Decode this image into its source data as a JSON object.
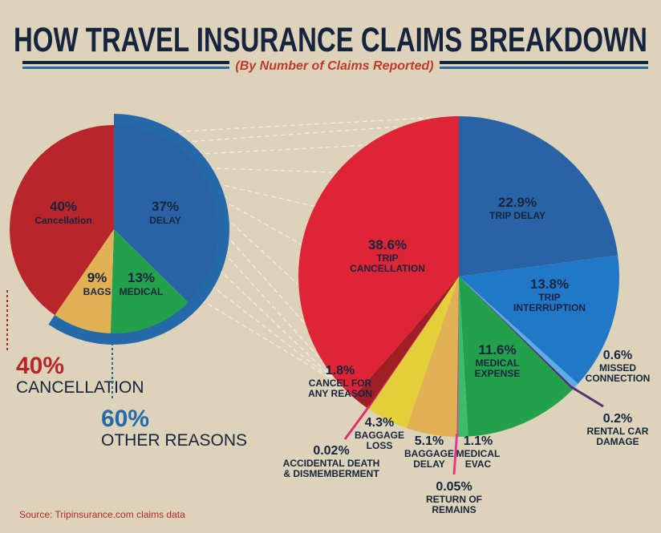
{
  "header": {
    "title": "HOW TRAVEL INSURANCE CLAIMS  BREAKDOWN",
    "subtitle": "(By Number of Claims Reported)"
  },
  "summary": {
    "cancel_pct": "40%",
    "cancel_label": "CANCELLATION",
    "other_pct": "60%",
    "other_label": "OTHER REASONS"
  },
  "source": "Source: Tripinsurance.com claims data",
  "chart_data": [
    {
      "type": "pie",
      "slices": [
        {
          "pct": "37%",
          "label": "DELAY",
          "value": 37,
          "color": "#2a63a5"
        },
        {
          "pct": "13%",
          "label": "MEDICAL",
          "value": 13,
          "color": "#22a04b"
        },
        {
          "pct": "9%",
          "label": "BAGS",
          "value": 9,
          "color": "#e2b155"
        },
        {
          "pct": "40%",
          "label": "Cancellation",
          "value": 40,
          "color": "#b8262c"
        }
      ],
      "highlight_color": "#2569ab"
    },
    {
      "type": "pie",
      "slices": [
        {
          "pct": "22.9%",
          "label": [
            "TRIP DELAY"
          ],
          "value": 22.9,
          "color": "#2a63a5"
        },
        {
          "pct": "13.8%",
          "label": [
            "TRIP",
            "INTERRUPTION"
          ],
          "value": 13.8,
          "color": "#2178c9"
        },
        {
          "pct": "0.6%",
          "label": [
            "MISSED",
            "CONNECTION"
          ],
          "value": 0.6,
          "color": "#5aaee6"
        },
        {
          "pct": "0.2%",
          "label": [
            "RENTAL CAR",
            "DAMAGE"
          ],
          "value": 0.2,
          "color": "#5b2f6e"
        },
        {
          "pct": "11.6%",
          "label": [
            "MEDICAL",
            "EXPENSE"
          ],
          "value": 11.6,
          "color": "#22a04b"
        },
        {
          "pct": "1.1%",
          "label": [
            "MEDICAL",
            "EVAC"
          ],
          "value": 1.1,
          "color": "#3dbd6a"
        },
        {
          "pct": "0.05%",
          "label": [
            "RETURN OF",
            "REMAINS"
          ],
          "value": 0.05,
          "color": "#e8378f"
        },
        {
          "pct": "5.1%",
          "label": [
            "BAGGAGE",
            "DELAY"
          ],
          "value": 5.1,
          "color": "#e2b155"
        },
        {
          "pct": "4.3%",
          "label": [
            "BAGGAGE",
            "LOSS"
          ],
          "value": 4.3,
          "color": "#e3cf3a"
        },
        {
          "pct": "0.02%",
          "label": [
            "ACCIDENTAL DEATH",
            "& DISMEMBERMENT"
          ],
          "value": 0.02,
          "color": "#d6336f"
        },
        {
          "pct": "1.8%",
          "label": [
            "CANCEL FOR",
            "ANY REASON"
          ],
          "value": 1.8,
          "color": "#a01e25"
        },
        {
          "pct": "38.6%",
          "label": [
            "TRIP",
            "CANCELLATION"
          ],
          "value": 38.6,
          "color": "#dd2535"
        }
      ]
    }
  ]
}
